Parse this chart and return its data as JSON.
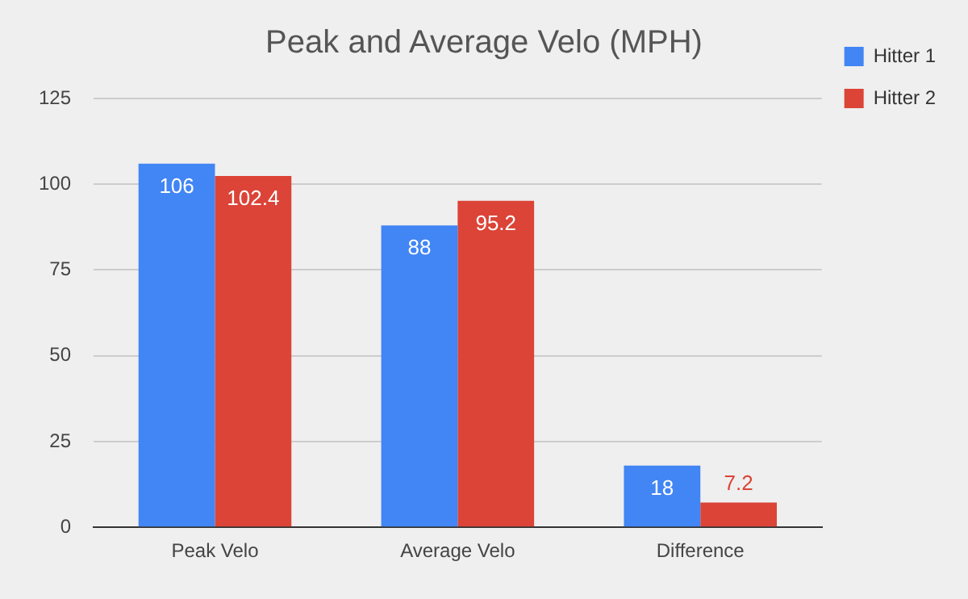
{
  "chart_data": {
    "type": "bar",
    "title": "Peak and Average Velo (MPH)",
    "categories": [
      "Peak Velo",
      "Average Velo",
      "Difference"
    ],
    "series": [
      {
        "name": "Hitter 1",
        "color": "#4285f4",
        "values": [
          106,
          88,
          18
        ]
      },
      {
        "name": "Hitter 2",
        "color": "#db4437",
        "values": [
          102.4,
          95.2,
          7.2
        ]
      }
    ],
    "ylim": [
      0,
      125
    ],
    "yticks": [
      0,
      25,
      50,
      75,
      100,
      125
    ],
    "grid": "y",
    "legend": "top right",
    "data_labels": true
  }
}
